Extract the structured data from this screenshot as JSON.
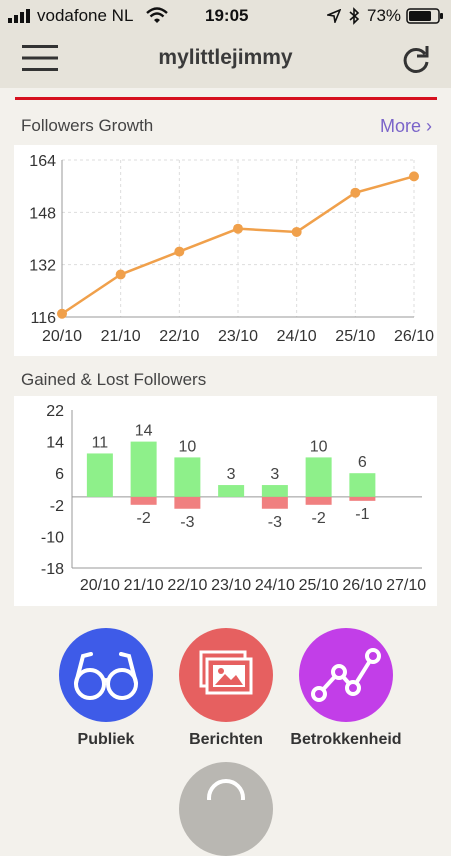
{
  "status_bar": {
    "carrier": "vodafone NL",
    "time": "19:05",
    "battery": "73%"
  },
  "header": {
    "title": "mylittlejimmy"
  },
  "followers_growth": {
    "title": "Followers Growth",
    "more_label": "More ›"
  },
  "gained_lost": {
    "title": "Gained & Lost Followers"
  },
  "chart_data": [
    {
      "type": "line",
      "title": "Followers Growth",
      "x": [
        "20/10",
        "21/10",
        "22/10",
        "23/10",
        "24/10",
        "25/10",
        "26/10"
      ],
      "values": [
        117,
        129,
        136,
        143,
        142,
        154,
        159
      ],
      "yticks": [
        116,
        132,
        148,
        164
      ],
      "ylim": [
        116,
        164
      ],
      "grid": true,
      "color": "#f0a04b"
    },
    {
      "type": "bar",
      "title": "Gained & Lost Followers",
      "categories": [
        "20/10",
        "21/10",
        "22/10",
        "23/10",
        "24/10",
        "25/10",
        "26/10",
        "27/10"
      ],
      "series": [
        {
          "values": [
            11,
            14,
            10,
            3,
            3,
            10,
            6,
            null
          ],
          "labels": [
            "11",
            "14",
            "10",
            "3",
            "3",
            "10",
            "6",
            ""
          ],
          "color": "#8ef08a"
        },
        {
          "values": [
            0,
            -2,
            -3,
            0,
            -3,
            -2,
            -1,
            null
          ],
          "labels": [
            "",
            "-2",
            "-3",
            "",
            "-3",
            "-2",
            "-1",
            ""
          ],
          "color": "#f08080"
        }
      ],
      "yticks": [
        22,
        14,
        6,
        -2,
        -10,
        -18
      ],
      "ylim": [
        -18,
        22
      ]
    }
  ],
  "actions": [
    {
      "label": "Publiek",
      "icon": "glasses-icon",
      "color": "#3e5be8"
    },
    {
      "label": "Berichten",
      "icon": "pictures-icon",
      "color": "#e66060"
    },
    {
      "label": "Betrokkenheid",
      "icon": "trend-icon",
      "color": "#c23ee8"
    }
  ]
}
